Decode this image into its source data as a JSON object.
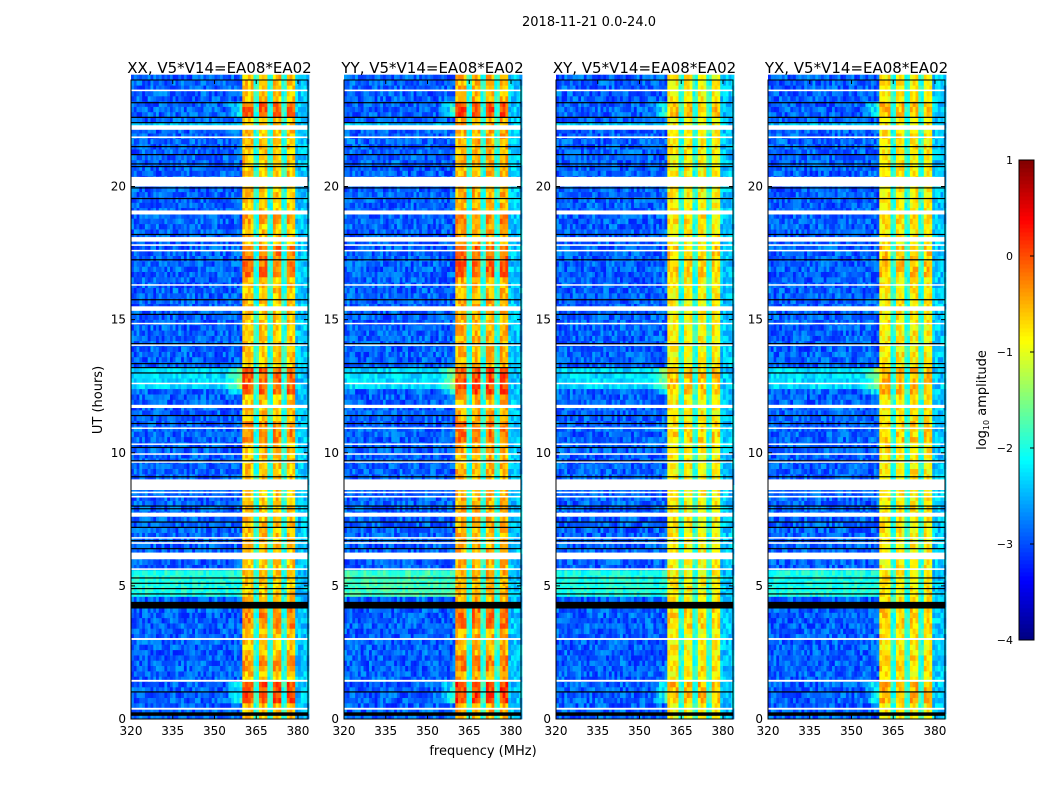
{
  "chart_data": {
    "type": "heatmap",
    "title": "2018-11-21 0.0-24.0",
    "xlabel": "frequency (MHz)",
    "ylabel": "UT (hours)",
    "xlim": [
      320,
      383.6
    ],
    "ylim": [
      0,
      24
    ],
    "xticks": [
      320,
      335,
      350,
      365,
      380
    ],
    "yticks": [
      0,
      5,
      10,
      15,
      20
    ],
    "colorbar": {
      "label_main": "log",
      "label_sub": "10",
      "label_rest": " amplitude",
      "range": [
        -4,
        1
      ],
      "ticks": [
        1,
        0,
        -1,
        -2,
        -3,
        -4
      ],
      "tick_labels": [
        "1",
        "0",
        "−1",
        "−2",
        "−3",
        "−4"
      ],
      "colormap": "jet"
    },
    "background_level": -2.9,
    "band": {
      "freq_range": [
        360,
        379.5
      ],
      "level": -0.6,
      "gap_freqs": [
        365,
        370,
        375
      ],
      "gap_level": -2.2,
      "edge_level": -2.4
    },
    "strong_band_times": [
      [
        0.5,
        1.4,
        0.6
      ],
      [
        1.6,
        2.2,
        0.2
      ],
      [
        3.3,
        4.1,
        0.3
      ],
      [
        10.2,
        11.0,
        0.3
      ],
      [
        12.0,
        13.0,
        0.5
      ],
      [
        16.5,
        17.6,
        0.4
      ],
      [
        18.4,
        18.9,
        0.2
      ],
      [
        22.5,
        23.0,
        0.5
      ]
    ],
    "low_freq_enhanced_times": [
      [
        4.5,
        5.6,
        -2.0
      ],
      [
        12.2,
        13.0,
        -2.3
      ],
      [
        22.0,
        22.3,
        -2.4
      ]
    ],
    "flagged_white": [
      [
        0.35,
        0.42
      ],
      [
        1.4,
        1.47
      ],
      [
        2.97,
        3.04
      ],
      [
        5.6,
        5.66
      ],
      [
        6.0,
        6.25
      ],
      [
        6.58,
        6.64
      ],
      [
        6.78,
        6.83
      ],
      [
        7.6,
        7.75
      ],
      [
        8.32,
        8.38
      ],
      [
        8.48,
        8.54
      ],
      [
        8.6,
        9.0
      ],
      [
        9.63,
        9.68
      ],
      [
        9.93,
        9.98
      ],
      [
        10.3,
        10.35
      ],
      [
        10.9,
        10.95
      ],
      [
        11.68,
        11.8
      ],
      [
        12.58,
        12.63
      ],
      [
        14.03,
        14.07
      ],
      [
        14.83,
        14.88
      ],
      [
        15.33,
        15.5
      ],
      [
        16.28,
        16.33
      ],
      [
        17.57,
        17.62
      ],
      [
        17.77,
        17.83
      ],
      [
        17.93,
        18.1
      ],
      [
        18.95,
        19.1
      ],
      [
        20.0,
        20.36
      ],
      [
        21.82,
        21.88
      ],
      [
        22.13,
        22.3
      ],
      [
        23.58,
        23.64
      ]
    ],
    "flagged_black": [
      [
        0.12,
        0.25
      ],
      [
        1.0,
        1.04
      ],
      [
        4.15,
        4.4
      ],
      [
        4.68,
        4.72
      ],
      [
        4.88,
        4.92
      ],
      [
        5.08,
        5.12
      ],
      [
        5.28,
        5.32
      ],
      [
        6.38,
        6.42
      ],
      [
        6.68,
        6.72
      ],
      [
        7.18,
        7.22
      ],
      [
        7.38,
        7.42
      ],
      [
        7.88,
        7.92
      ],
      [
        7.98,
        8.02
      ],
      [
        9.08,
        9.12
      ],
      [
        9.68,
        9.72
      ],
      [
        10.18,
        10.22
      ],
      [
        11.08,
        11.12
      ],
      [
        11.38,
        11.42
      ],
      [
        12.98,
        13.02
      ],
      [
        13.18,
        13.22
      ],
      [
        13.33,
        13.37
      ],
      [
        14.08,
        14.12
      ],
      [
        15.18,
        15.22
      ],
      [
        15.73,
        15.77
      ],
      [
        17.23,
        17.27
      ],
      [
        18.18,
        18.22
      ],
      [
        19.53,
        19.57
      ],
      [
        19.93,
        19.97
      ],
      [
        20.73,
        20.77
      ],
      [
        20.83,
        20.87
      ],
      [
        21.18,
        21.22
      ],
      [
        21.48,
        21.52
      ],
      [
        22.38,
        22.42
      ],
      [
        22.58,
        22.62
      ],
      [
        23.13,
        23.17
      ]
    ],
    "panels": [
      {
        "title": "XX, V5*V14=EA08*EA02",
        "band_offset": 0.0,
        "green_boost": 0.0
      },
      {
        "title": "YY, V5*V14=EA08*EA02",
        "band_offset": 0.1,
        "green_boost": 0.4
      },
      {
        "title": "XY, V5*V14=EA08*EA02",
        "band_offset": -0.25,
        "green_boost": -0.2
      },
      {
        "title": "YX, V5*V14=EA08*EA02",
        "band_offset": -0.2,
        "green_boost": -0.1
      }
    ]
  }
}
